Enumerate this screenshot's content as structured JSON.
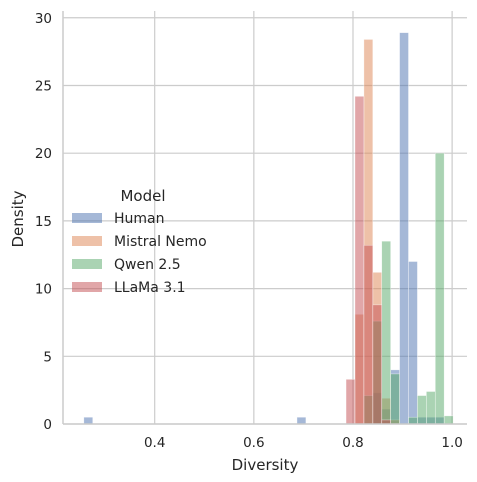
{
  "chart_data": {
    "type": "histogram",
    "xlabel": "Diversity",
    "ylabel": "Density",
    "xlim": [
      0.215,
      1.03
    ],
    "ylim": [
      0,
      30.5
    ],
    "xticks": [
      0.4,
      0.6,
      0.8,
      1.0
    ],
    "xtick_labels": [
      "0.4",
      "0.6",
      "0.8",
      "1.0"
    ],
    "yticks": [
      0,
      5,
      10,
      15,
      20,
      25,
      30
    ],
    "ytick_labels": [
      "0",
      "5",
      "10",
      "15",
      "20",
      "25",
      "30"
    ],
    "grid": true,
    "legend": {
      "title": "Model",
      "placement": "center-left"
    },
    "series": [
      {
        "name": "Human",
        "color": "#4c72b0",
        "bins": [
          {
            "x0": 0.257,
            "x1": 0.275,
            "y": 0.5
          },
          {
            "x0": 0.687,
            "x1": 0.705,
            "y": 0.5
          },
          {
            "x0": 0.84,
            "x1": 0.858,
            "y": 2.3
          },
          {
            "x0": 0.858,
            "x1": 0.876,
            "y": 1.1
          },
          {
            "x0": 0.876,
            "x1": 0.894,
            "y": 4.0
          },
          {
            "x0": 0.894,
            "x1": 0.912,
            "y": 28.9
          },
          {
            "x0": 0.912,
            "x1": 0.93,
            "y": 12.0
          },
          {
            "x0": 0.93,
            "x1": 0.948,
            "y": 0.5
          },
          {
            "x0": 0.948,
            "x1": 0.966,
            "y": 0.5
          },
          {
            "x0": 0.966,
            "x1": 0.984,
            "y": 0.5
          }
        ]
      },
      {
        "name": "Mistral Nemo",
        "color": "#dd8452",
        "bins": [
          {
            "x0": 0.804,
            "x1": 0.822,
            "y": 8.1
          },
          {
            "x0": 0.822,
            "x1": 0.84,
            "y": 28.4
          },
          {
            "x0": 0.84,
            "x1": 0.858,
            "y": 11.2
          },
          {
            "x0": 0.858,
            "x1": 0.876,
            "y": 1.9
          },
          {
            "x0": 0.876,
            "x1": 0.894,
            "y": 0.3
          }
        ]
      },
      {
        "name": "Qwen 2.5",
        "color": "#55a868",
        "bins": [
          {
            "x0": 0.822,
            "x1": 0.84,
            "y": 2.1
          },
          {
            "x0": 0.84,
            "x1": 0.858,
            "y": 7.6
          },
          {
            "x0": 0.858,
            "x1": 0.876,
            "y": 13.5
          },
          {
            "x0": 0.876,
            "x1": 0.894,
            "y": 3.7
          },
          {
            "x0": 0.912,
            "x1": 0.93,
            "y": 0.5
          },
          {
            "x0": 0.93,
            "x1": 0.948,
            "y": 2.1
          },
          {
            "x0": 0.948,
            "x1": 0.966,
            "y": 2.4
          },
          {
            "x0": 0.966,
            "x1": 0.984,
            "y": 20.0
          },
          {
            "x0": 0.984,
            "x1": 1.002,
            "y": 0.6
          }
        ]
      },
      {
        "name": "LLaMa 3.1",
        "color": "#c44e52",
        "bins": [
          {
            "x0": 0.786,
            "x1": 0.804,
            "y": 3.3
          },
          {
            "x0": 0.804,
            "x1": 0.822,
            "y": 24.2
          },
          {
            "x0": 0.822,
            "x1": 0.84,
            "y": 13.2
          },
          {
            "x0": 0.84,
            "x1": 0.858,
            "y": 8.8
          },
          {
            "x0": 0.858,
            "x1": 0.876,
            "y": 0.3
          }
        ]
      }
    ]
  }
}
